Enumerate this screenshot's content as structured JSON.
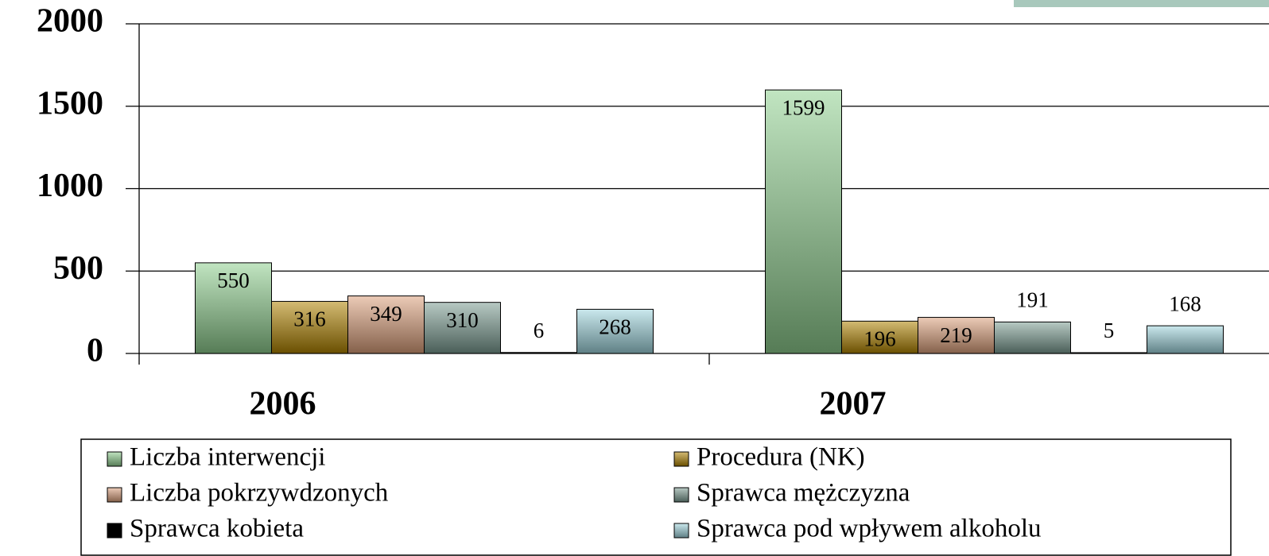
{
  "chart_data": {
    "type": "bar",
    "categories": [
      "2006",
      "2007"
    ],
    "series": [
      {
        "name": "Liczba interwencji",
        "color": "#8fcf8f",
        "values": [
          550,
          1599
        ]
      },
      {
        "name": "Procedura (NK)",
        "color": "#b08400",
        "values": [
          316,
          196
        ]
      },
      {
        "name": "Liczba pokrzywdzonych",
        "color": "#dca07c",
        "values": [
          349,
          219
        ]
      },
      {
        "name": "Sprawca mężczyzna",
        "color": "#7c9c92",
        "values": [
          310,
          191
        ]
      },
      {
        "name": "Sprawca kobieta",
        "color": "#000000",
        "values": [
          6,
          5
        ]
      },
      {
        "name": "Sprawca pod wpływem alkoholu",
        "color": "#9fd6de",
        "values": [
          268,
          168
        ]
      }
    ],
    "ylim": [
      0,
      2000
    ],
    "yticks": [
      0,
      500,
      1000,
      1500,
      2000
    ],
    "grid": true,
    "legend": "bottom"
  }
}
